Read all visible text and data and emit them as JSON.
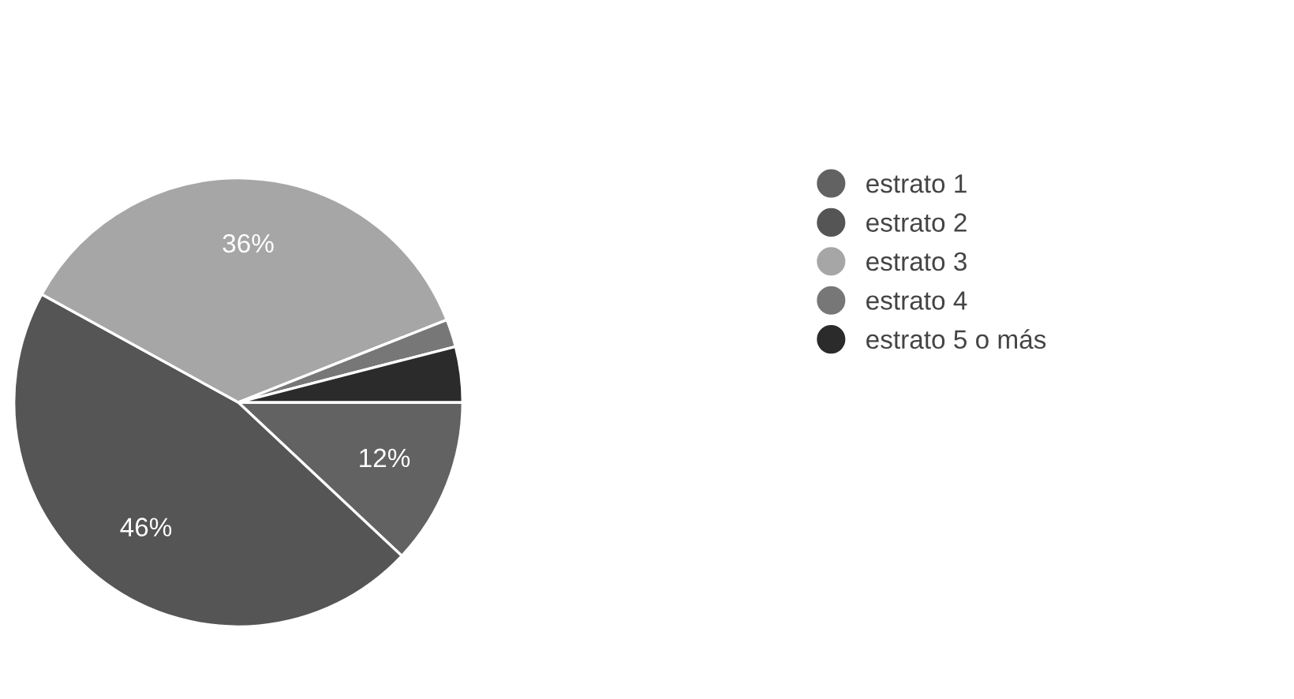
{
  "chart_data": {
    "type": "pie",
    "categories": [
      "estrato 1",
      "estrato 2",
      "estrato 3",
      "estrato 4",
      "estrato 5 o más"
    ],
    "values": [
      12,
      46,
      36,
      2,
      4
    ],
    "value_labels": [
      "12%",
      "46%",
      "36%",
      null,
      null
    ],
    "colors": [
      "#626262",
      "#555555",
      "#a6a6a6",
      "#777777",
      "#2b2b2b"
    ],
    "legend": "right"
  }
}
